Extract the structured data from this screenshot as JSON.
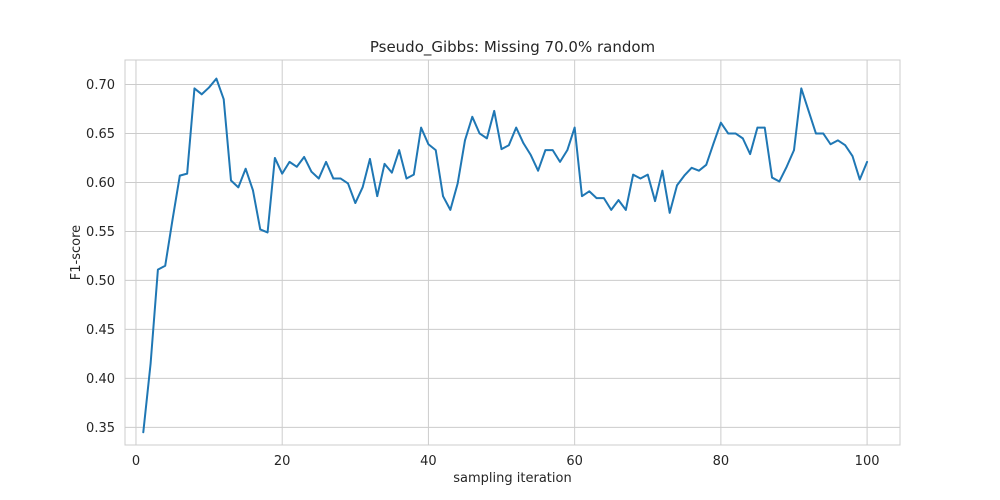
{
  "chart_data": {
    "type": "line",
    "title": "Pseudo_Gibbs: Missing 70.0% random",
    "xlabel": "sampling iteration",
    "ylabel": "F1-score",
    "xlim": [
      -1.5,
      104.5
    ],
    "ylim": [
      0.332,
      0.725
    ],
    "xticks": [
      0,
      20,
      40,
      60,
      80,
      100
    ],
    "yticks": [
      0.35,
      0.4,
      0.45,
      0.5,
      0.55,
      0.6,
      0.65,
      0.7
    ],
    "xtick_labels": [
      "0",
      "20",
      "40",
      "60",
      "80",
      "100"
    ],
    "ytick_labels": [
      "0.35",
      "0.40",
      "0.45",
      "0.50",
      "0.55",
      "0.60",
      "0.65",
      "0.70"
    ],
    "grid": true,
    "line_color": "#1f77b4",
    "series": [
      {
        "x": [
          1,
          2,
          3,
          4,
          5,
          6,
          7,
          8,
          9,
          10,
          11,
          12,
          13,
          14,
          15,
          16,
          17,
          18,
          19,
          20,
          21,
          22,
          23,
          24,
          25,
          26,
          27,
          28,
          29,
          30,
          31,
          32,
          33,
          34,
          35,
          36,
          37,
          38,
          39,
          40,
          41,
          42,
          43,
          44,
          45,
          46,
          47,
          48,
          49,
          50,
          51,
          52,
          53,
          54,
          55,
          56,
          57,
          58,
          59,
          60,
          61,
          62,
          63,
          64,
          65,
          66,
          67,
          68,
          69,
          70,
          71,
          72,
          73,
          74,
          75,
          76,
          77,
          78,
          79,
          80,
          81,
          82,
          83,
          84,
          85,
          86,
          87,
          88,
          89,
          90,
          91,
          92,
          93,
          94,
          95,
          96,
          97,
          98,
          99,
          100
        ],
        "values": [
          0.345,
          0.415,
          0.511,
          0.515,
          0.562,
          0.607,
          0.609,
          0.696,
          0.69,
          0.697,
          0.706,
          0.685,
          0.602,
          0.595,
          0.614,
          0.592,
          0.552,
          0.549,
          0.625,
          0.609,
          0.621,
          0.616,
          0.626,
          0.611,
          0.604,
          0.621,
          0.604,
          0.604,
          0.599,
          0.579,
          0.595,
          0.624,
          0.586,
          0.619,
          0.61,
          0.633,
          0.604,
          0.608,
          0.656,
          0.639,
          0.633,
          0.586,
          0.572,
          0.599,
          0.643,
          0.667,
          0.65,
          0.645,
          0.673,
          0.634,
          0.638,
          0.656,
          0.64,
          0.628,
          0.612,
          0.633,
          0.633,
          0.621,
          0.633,
          0.656,
          0.586,
          0.591,
          0.584,
          0.584,
          0.572,
          0.582,
          0.572,
          0.608,
          0.604,
          0.608,
          0.581,
          0.612,
          0.569,
          0.597,
          0.607,
          0.615,
          0.612,
          0.618,
          0.64,
          0.661,
          0.65,
          0.65,
          0.645,
          0.629,
          0.656,
          0.656,
          0.605,
          0.601,
          0.616,
          0.633,
          0.696,
          0.673,
          0.65,
          0.65,
          0.639,
          0.643,
          0.638,
          0.627,
          0.603,
          0.621
        ]
      }
    ]
  }
}
